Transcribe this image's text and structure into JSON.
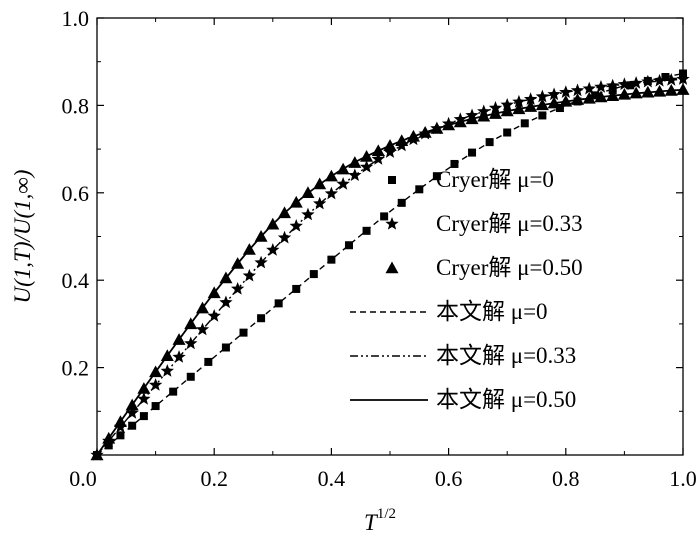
{
  "chart_data": {
    "type": "line",
    "title": "",
    "xlabel": "T",
    "xlabel_superscript": "1/2",
    "ylabel": "U(1,T)/U(1,∞)",
    "xlim": [
      0.0,
      1.0
    ],
    "ylim": [
      0.0,
      1.0
    ],
    "x_ticks": [
      "0.0",
      "0.2",
      "0.4",
      "0.6",
      "0.8",
      "1.0"
    ],
    "y_ticks": [
      "0.2",
      "0.4",
      "0.6",
      "0.8",
      "1.0"
    ],
    "grid": false,
    "legend_position": "right-center",
    "series": [
      {
        "name": "Cryer解 μ=0",
        "style": "markers",
        "marker": "square",
        "x": [
          0.0,
          0.02,
          0.04,
          0.06,
          0.08,
          0.1,
          0.13,
          0.16,
          0.19,
          0.22,
          0.25,
          0.28,
          0.31,
          0.34,
          0.37,
          0.4,
          0.43,
          0.46,
          0.49,
          0.52,
          0.55,
          0.58,
          0.61,
          0.64,
          0.67,
          0.7,
          0.73,
          0.76,
          0.79,
          0.82,
          0.85,
          0.88,
          0.91,
          0.94,
          0.97,
          1.0
        ],
        "y": [
          0.0,
          0.022,
          0.045,
          0.067,
          0.089,
          0.112,
          0.145,
          0.179,
          0.213,
          0.246,
          0.28,
          0.313,
          0.347,
          0.38,
          0.414,
          0.447,
          0.48,
          0.513,
          0.546,
          0.577,
          0.608,
          0.638,
          0.666,
          0.692,
          0.716,
          0.738,
          0.759,
          0.777,
          0.794,
          0.809,
          0.823,
          0.835,
          0.846,
          0.856,
          0.865,
          0.873
        ]
      },
      {
        "name": "Cryer解 μ=0.33",
        "style": "markers",
        "marker": "star",
        "x": [
          0.0,
          0.02,
          0.04,
          0.06,
          0.08,
          0.1,
          0.12,
          0.14,
          0.16,
          0.18,
          0.2,
          0.22,
          0.24,
          0.26,
          0.28,
          0.3,
          0.32,
          0.34,
          0.36,
          0.38,
          0.4,
          0.42,
          0.44,
          0.46,
          0.48,
          0.5,
          0.52,
          0.54,
          0.56,
          0.58,
          0.6,
          0.62,
          0.64,
          0.66,
          0.68,
          0.7,
          0.72,
          0.74,
          0.76,
          0.78,
          0.8,
          0.82,
          0.84,
          0.86,
          0.88,
          0.9,
          0.92,
          0.94,
          0.96,
          0.98,
          1.0
        ],
        "y": [
          0.0,
          0.032,
          0.064,
          0.096,
          0.128,
          0.16,
          0.192,
          0.224,
          0.255,
          0.287,
          0.318,
          0.349,
          0.38,
          0.41,
          0.44,
          0.469,
          0.497,
          0.524,
          0.55,
          0.575,
          0.598,
          0.62,
          0.64,
          0.659,
          0.677,
          0.693,
          0.708,
          0.722,
          0.735,
          0.747,
          0.758,
          0.768,
          0.777,
          0.786,
          0.794,
          0.801,
          0.808,
          0.814,
          0.82,
          0.825,
          0.83,
          0.834,
          0.838,
          0.842,
          0.845,
          0.848,
          0.851,
          0.854,
          0.856,
          0.858,
          0.86
        ]
      },
      {
        "name": "Cryer解 μ=0.50",
        "style": "markers",
        "marker": "triangle",
        "x": [
          0.0,
          0.02,
          0.04,
          0.06,
          0.08,
          0.1,
          0.12,
          0.14,
          0.16,
          0.18,
          0.2,
          0.22,
          0.24,
          0.26,
          0.28,
          0.3,
          0.32,
          0.34,
          0.36,
          0.38,
          0.4,
          0.42,
          0.44,
          0.46,
          0.48,
          0.5,
          0.52,
          0.54,
          0.56,
          0.58,
          0.6,
          0.62,
          0.64,
          0.66,
          0.68,
          0.7,
          0.72,
          0.74,
          0.76,
          0.78,
          0.8,
          0.82,
          0.84,
          0.86,
          0.88,
          0.9,
          0.92,
          0.94,
          0.96,
          0.98,
          1.0
        ],
        "y": [
          0.0,
          0.038,
          0.076,
          0.114,
          0.152,
          0.19,
          0.227,
          0.264,
          0.3,
          0.336,
          0.371,
          0.405,
          0.438,
          0.47,
          0.5,
          0.528,
          0.554,
          0.578,
          0.6,
          0.62,
          0.638,
          0.654,
          0.669,
          0.683,
          0.696,
          0.708,
          0.719,
          0.729,
          0.738,
          0.747,
          0.755,
          0.762,
          0.769,
          0.775,
          0.781,
          0.787,
          0.792,
          0.797,
          0.801,
          0.805,
          0.809,
          0.813,
          0.816,
          0.819,
          0.822,
          0.825,
          0.828,
          0.83,
          0.832,
          0.834,
          0.836
        ]
      },
      {
        "name": "本文解 μ=0",
        "style": "dashed",
        "x": [
          0.0,
          0.1,
          0.2,
          0.3,
          0.4,
          0.5,
          0.6,
          0.7,
          0.8,
          0.9,
          1.0
        ],
        "y": [
          0.0,
          0.112,
          0.224,
          0.336,
          0.447,
          0.557,
          0.656,
          0.738,
          0.8,
          0.845,
          0.873
        ]
      },
      {
        "name": "本文解 μ=0.33",
        "style": "dashdotdot",
        "x": [
          0.0,
          0.1,
          0.2,
          0.3,
          0.4,
          0.5,
          0.6,
          0.7,
          0.8,
          0.9,
          1.0
        ],
        "y": [
          0.0,
          0.16,
          0.318,
          0.469,
          0.598,
          0.693,
          0.758,
          0.801,
          0.83,
          0.848,
          0.86
        ]
      },
      {
        "name": "本文解 μ=0.50",
        "style": "solid",
        "x": [
          0.0,
          0.1,
          0.2,
          0.3,
          0.4,
          0.5,
          0.6,
          0.7,
          0.8,
          0.9,
          1.0
        ],
        "y": [
          0.0,
          0.19,
          0.371,
          0.528,
          0.638,
          0.708,
          0.755,
          0.787,
          0.809,
          0.825,
          0.836
        ]
      }
    ]
  }
}
